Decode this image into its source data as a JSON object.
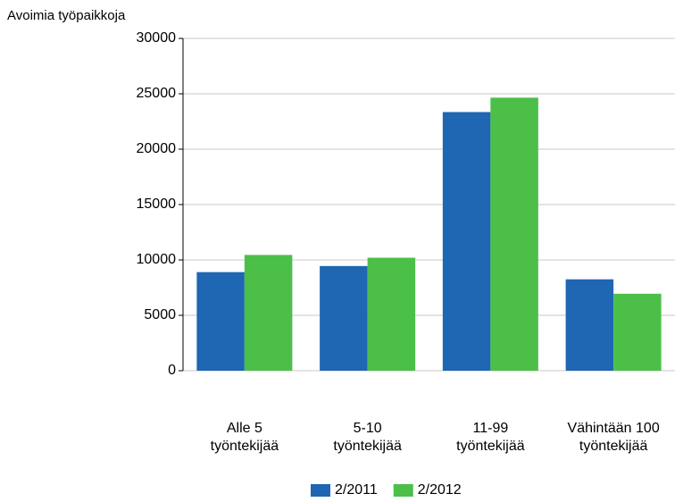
{
  "chart_data": {
    "type": "bar",
    "y_label": "Avoimia työpaikkoja",
    "categories": [
      "Alle 5\ntyöntekijää",
      "5-10\ntyöntekijää",
      "11-99\ntyöntekijää",
      "Vähintään 100\ntyöntekijää"
    ],
    "series": [
      {
        "name": "2/2011",
        "color": "#1f66b3",
        "values": [
          8900,
          9450,
          23350,
          8250
        ]
      },
      {
        "name": "2/2012",
        "color": "#4cbf49",
        "values": [
          10450,
          10200,
          24650,
          6950
        ]
      }
    ],
    "ylim": [
      0,
      30000
    ],
    "yticks": [
      0,
      5000,
      10000,
      15000,
      20000,
      25000,
      30000
    ],
    "grid": true,
    "legend": "bottom"
  }
}
